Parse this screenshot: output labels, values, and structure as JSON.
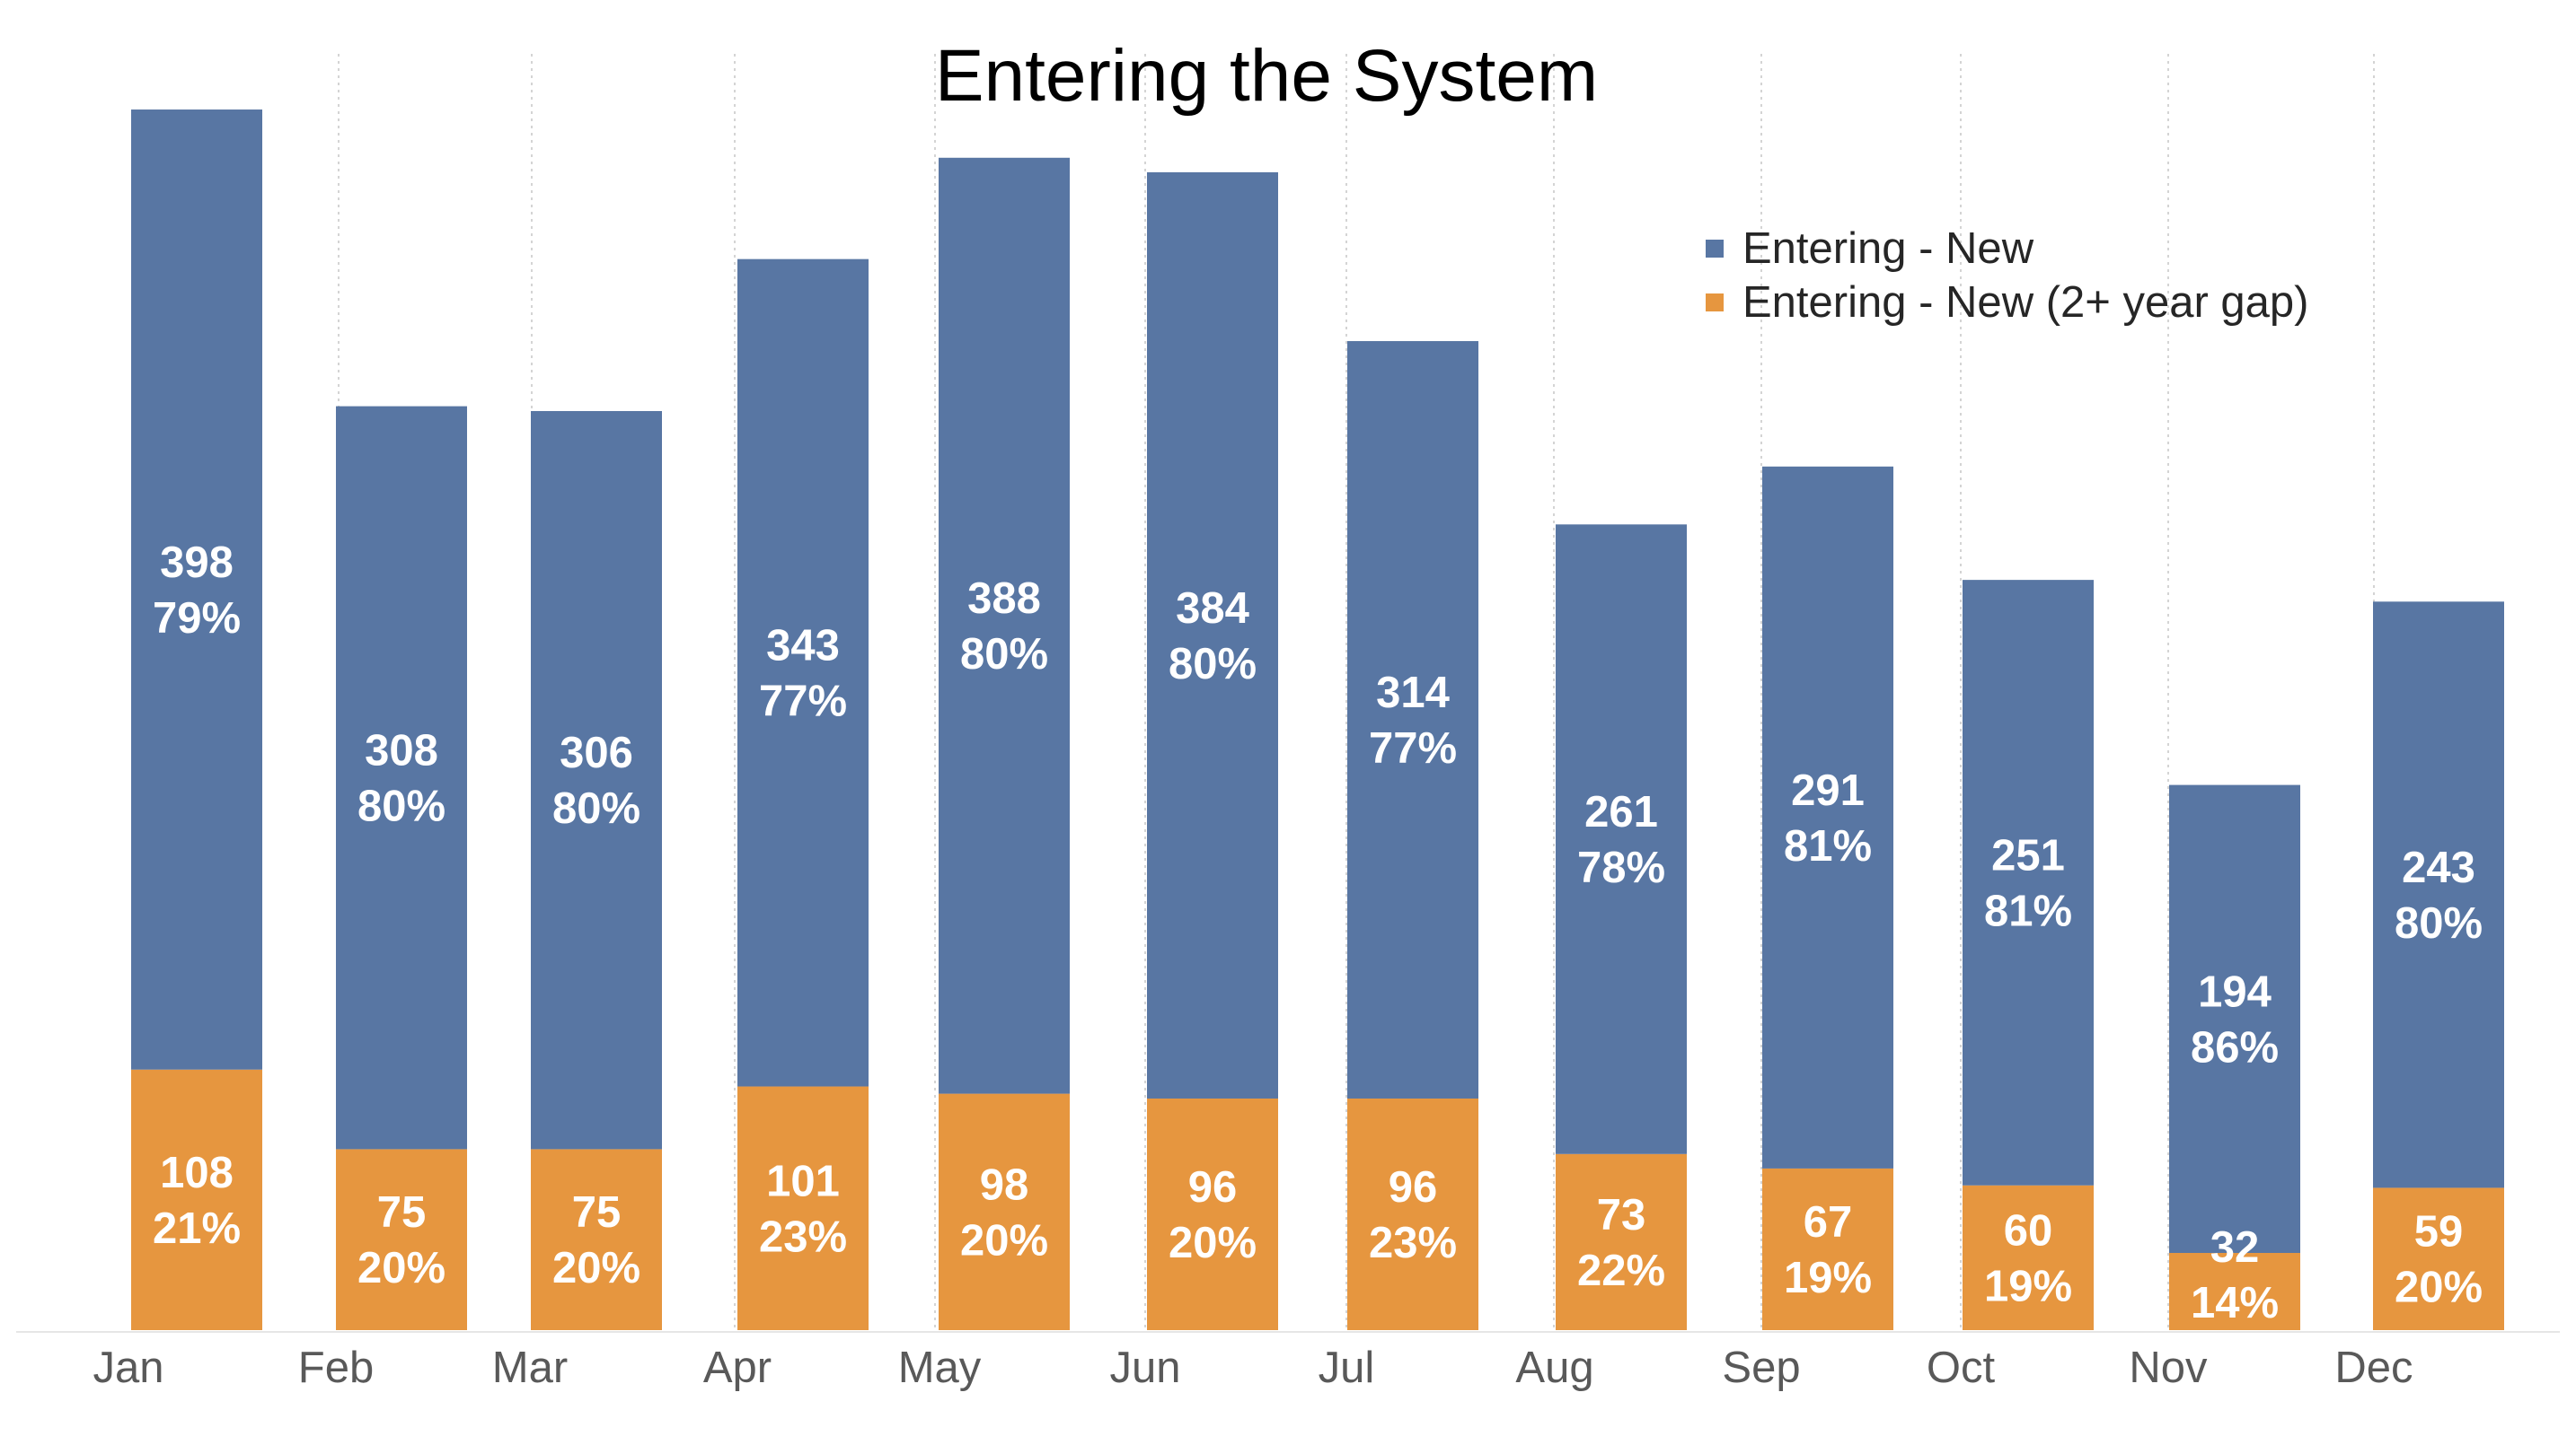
{
  "chart_data": {
    "type": "bar",
    "stacked": true,
    "title": "Entering the System",
    "xlabel": "",
    "ylabel": "",
    "categories": [
      "Jan",
      "Feb",
      "Mar",
      "Apr",
      "May",
      "Jun",
      "Jul",
      "Aug",
      "Sep",
      "Oct",
      "Nov",
      "Dec"
    ],
    "series": [
      {
        "name": "Entering - New (2+ year gap)",
        "color": "#E6963F",
        "values": [
          108,
          75,
          75,
          101,
          98,
          96,
          96,
          73,
          67,
          60,
          32,
          59
        ],
        "percent_labels": [
          "21%",
          "20%",
          "20%",
          "23%",
          "20%",
          "20%",
          "23%",
          "22%",
          "19%",
          "19%",
          "14%",
          "20%"
        ]
      },
      {
        "name": "Entering - New",
        "color": "#5876A3",
        "values": [
          398,
          308,
          306,
          343,
          388,
          384,
          314,
          261,
          291,
          251,
          194,
          243
        ],
        "percent_labels": [
          "79%",
          "80%",
          "80%",
          "77%",
          "80%",
          "80%",
          "77%",
          "78%",
          "81%",
          "81%",
          "86%",
          "80%"
        ]
      }
    ],
    "ylim": [
      0,
      540
    ],
    "y_axis_visible": false,
    "grid": "vertical dotted lines between categories",
    "legend": {
      "position": "top-right",
      "entries": [
        "Entering - New",
        "Entering - New (2+ year gap)"
      ]
    }
  }
}
